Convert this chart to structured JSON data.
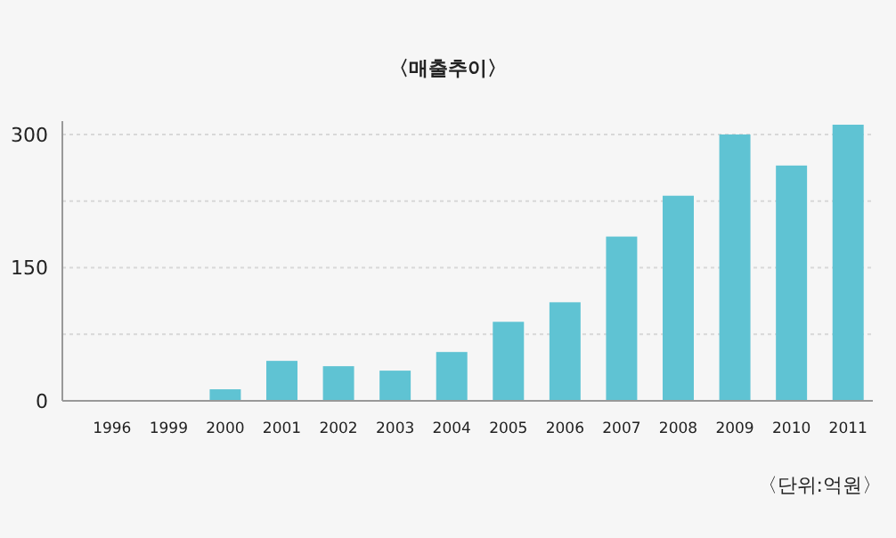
{
  "chart_data": {
    "type": "bar",
    "title": "〈매출추이〉",
    "categories": [
      "1996",
      "1999",
      "2000",
      "2001",
      "2002",
      "2003",
      "2004",
      "2005",
      "2006",
      "2007",
      "2008",
      "2009",
      "2010",
      "2011"
    ],
    "values": [
      1,
      1,
      13,
      45,
      39,
      34,
      55,
      89,
      111,
      185,
      231,
      300,
      265,
      311
    ],
    "color": "#5fc3d3",
    "ylim": [
      0,
      315
    ],
    "yticks": [
      0,
      {
        "value": 75,
        "label": null
      },
      150,
      {
        "value": 225,
        "label": null
      },
      300
    ],
    "grid": "y",
    "annotations": [
      "〈단위:억원〉"
    ]
  }
}
